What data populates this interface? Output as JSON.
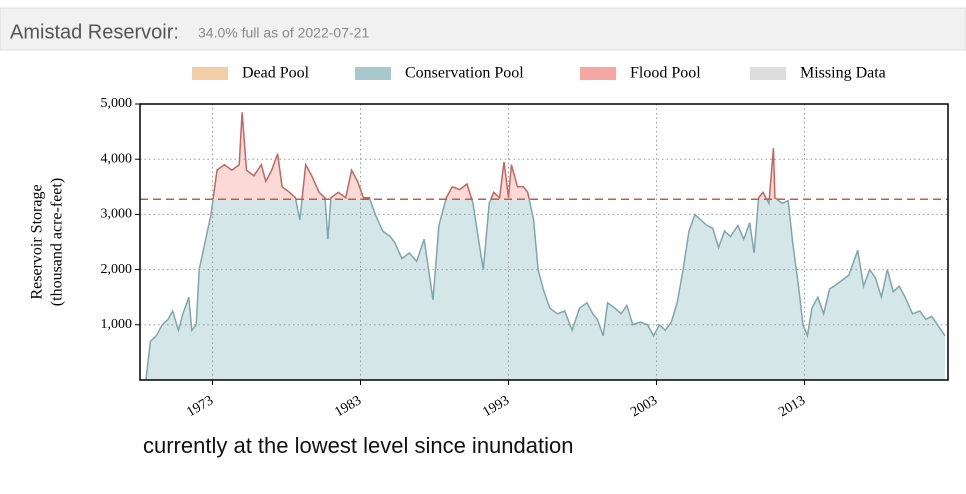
{
  "header": {
    "title": "Amistad Reservoir:",
    "subtitle": "34.0% full as of 2022-07-21"
  },
  "chart_data": {
    "type": "area",
    "ylabel": [
      "Reservoir Storage",
      "(thousand acre-feet)"
    ],
    "legend": [
      {
        "name": "Dead Pool",
        "color": "#f3cfa8"
      },
      {
        "name": "Conservation Pool",
        "color": "#a8c8cc"
      },
      {
        "name": "Flood Pool",
        "color": "#f6a7a3"
      },
      {
        "name": "Missing Data",
        "color": "#dddddd"
      }
    ],
    "conservation_fill": "#d5e6e8",
    "conservation_line": "#7fa6ab",
    "flood_fill": "#fad9d7",
    "flood_line": "#c0675f",
    "flood_level": 3275,
    "x": [
      1968.5,
      1968.8,
      1969.2,
      1969.6,
      1970.0,
      1970.3,
      1970.7,
      1971.0,
      1971.4,
      1971.6,
      1971.9,
      1972.1,
      1972.5,
      1972.9,
      1973.3,
      1973.8,
      1974.3,
      1974.8,
      1975.0,
      1975.3,
      1975.8,
      1976.3,
      1976.6,
      1977.0,
      1977.4,
      1977.7,
      1978.2,
      1978.6,
      1978.9,
      1979.3,
      1979.7,
      1980.2,
      1980.6,
      1980.8,
      1981.0,
      1981.5,
      1982.0,
      1982.4,
      1982.8,
      1983.2,
      1983.6,
      1984.0,
      1984.5,
      1985.0,
      1985.3,
      1985.8,
      1986.3,
      1986.8,
      1987.3,
      1987.6,
      1987.9,
      1988.3,
      1988.8,
      1989.2,
      1989.7,
      1990.2,
      1990.6,
      1991.0,
      1991.3,
      1991.7,
      1992.0,
      1992.4,
      1992.7,
      1993.0,
      1993.2,
      1993.6,
      1994.0,
      1994.3,
      1994.7,
      1995.0,
      1995.4,
      1995.8,
      1996.3,
      1996.8,
      1997.3,
      1997.8,
      1998.3,
      1998.7,
      1999.0,
      1999.4,
      1999.7,
      2000.2,
      2000.6,
      2001.0,
      2001.4,
      2001.9,
      2002.4,
      2002.8,
      2003.2,
      2003.6,
      2004.0,
      2004.4,
      2004.8,
      2005.2,
      2005.6,
      2006.0,
      2006.4,
      2006.8,
      2007.2,
      2007.6,
      2008.0,
      2008.5,
      2008.9,
      2009.3,
      2009.6,
      2009.9,
      2010.2,
      2010.6,
      2010.9,
      2011.0,
      2011.5,
      2011.9,
      2012.2,
      2012.6,
      2012.9,
      2013.2,
      2013.5,
      2013.9,
      2014.3,
      2014.7,
      2015.0,
      2015.5,
      2016.0,
      2016.4,
      2016.6,
      2017.0,
      2017.4,
      2017.8,
      2018.2,
      2018.6,
      2019.0,
      2019.4,
      2019.8,
      2020.3,
      2020.8,
      2021.2,
      2021.6,
      2022.0,
      2022.5
    ],
    "values": [
      0,
      700,
      800,
      1000,
      1100,
      1250,
      900,
      1200,
      1500,
      900,
      1000,
      2000,
      2500,
      3000,
      3800,
      3900,
      3800,
      3900,
      4850,
      3800,
      3700,
      3900,
      3600,
      3800,
      4100,
      3500,
      3400,
      3300,
      2900,
      3900,
      3700,
      3400,
      3300,
      2550,
      3300,
      3400,
      3300,
      3800,
      3600,
      3300,
      3300,
      3000,
      2700,
      2600,
      2500,
      2200,
      2300,
      2150,
      2550,
      2000,
      1450,
      2800,
      3300,
      3500,
      3450,
      3550,
      3200,
      2500,
      2000,
      3200,
      3400,
      3300,
      3950,
      3300,
      3900,
      3500,
      3500,
      3400,
      2900,
      2000,
      1600,
      1300,
      1200,
      1250,
      900,
      1300,
      1400,
      1200,
      1100,
      800,
      1400,
      1300,
      1200,
      1350,
      1000,
      1050,
      1000,
      800,
      1000,
      900,
      1050,
      1400,
      2000,
      2700,
      3000,
      2900,
      2800,
      2750,
      2400,
      2700,
      2600,
      2800,
      2550,
      2850,
      2300,
      3300,
      3400,
      3200,
      4200,
      3300,
      3200,
      3250,
      2500,
      1700,
      1000,
      800,
      1300,
      1500,
      1200,
      1650,
      1700,
      1800,
      1900,
      2200,
      2350,
      1700,
      2000,
      1850,
      1500,
      2000,
      1600,
      1700,
      1500,
      1200,
      1250,
      1100,
      1150,
      1000,
      800
    ],
    "xlim": [
      1968.1,
      2022.7
    ],
    "xticks": [
      1973,
      1983,
      1993,
      2003,
      2013
    ],
    "ylim": [
      0,
      5000
    ],
    "yticks": [
      {
        "value": 1000,
        "label": "1,000"
      },
      {
        "value": 2000,
        "label": "2,000"
      },
      {
        "value": 3000,
        "label": "3,000"
      },
      {
        "value": 4000,
        "label": "4,000"
      },
      {
        "value": 5000,
        "label": "5,000"
      }
    ],
    "grid": true,
    "annotation": "currently at the lowest level since inundation"
  }
}
